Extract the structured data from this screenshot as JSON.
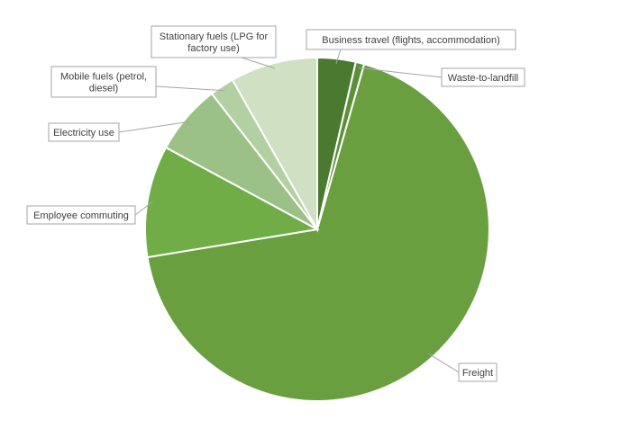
{
  "chart_data": {
    "type": "pie",
    "start_angle_deg": 0,
    "direction": "clockwise",
    "legend": "none",
    "slices": [
      {
        "label": "Business travel (flights, accommodation)",
        "value": 3.6,
        "color": "#4a7a30"
      },
      {
        "label": "Waste-to-landfill",
        "value": 0.8,
        "color": "#5d8f38"
      },
      {
        "label": "Freight",
        "value": 68.0,
        "color": "#6a9f40"
      },
      {
        "label": "Employee commuting",
        "value": 10.5,
        "color": "#70ad47"
      },
      {
        "label": "Electricity use",
        "value": 6.6,
        "color": "#9cc186"
      },
      {
        "label": "Mobile fuels (petrol, diesel)",
        "value": 2.3,
        "color": "#b3d0a3"
      },
      {
        "label": "Stationary fuels (LPG for factory use)",
        "value": 8.2,
        "color": "#cfe0c3"
      }
    ]
  }
}
